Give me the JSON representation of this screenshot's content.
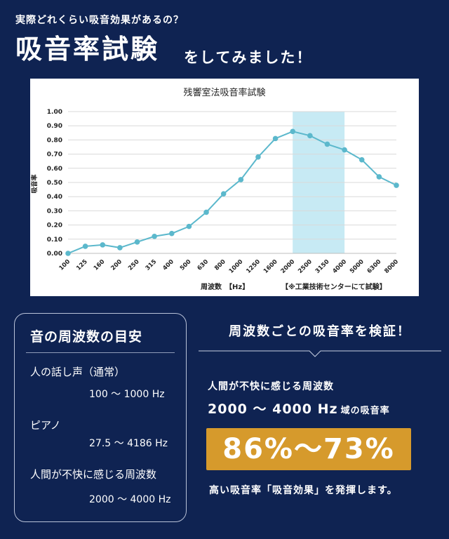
{
  "header": {
    "intro": "実際どれくらい吸音効果があるの？",
    "headline": "吸音率試験",
    "subline": "をしてみました！"
  },
  "colors": {
    "background": "#0f2352",
    "line": "#5bb8cc",
    "highlight": "#c7eaf4",
    "accent": "#d69a2c"
  },
  "chart_data": {
    "type": "line",
    "title": "残響室法吸音率試験",
    "ylabel": "吸音率",
    "xlabel": "周波数　【Hz】",
    "note": "【※工業技術センターにて試験】",
    "categories": [
      "100",
      "125",
      "160",
      "200",
      "250",
      "315",
      "400",
      "500",
      "630",
      "800",
      "1000",
      "1250",
      "1600",
      "2000",
      "2500",
      "3150",
      "4000",
      "5000",
      "6300",
      "8000"
    ],
    "values": [
      0.0,
      0.05,
      0.06,
      0.04,
      0.08,
      0.12,
      0.14,
      0.19,
      0.29,
      0.42,
      0.52,
      0.68,
      0.81,
      0.86,
      0.83,
      0.77,
      0.73,
      0.66,
      0.54,
      0.48
    ],
    "ylim": [
      0,
      1.0
    ],
    "yticks": [
      "0.00",
      "0.10",
      "0.20",
      "0.30",
      "0.40",
      "0.50",
      "0.60",
      "0.70",
      "0.80",
      "0.90",
      "1.00"
    ],
    "highlight_range": [
      "2000",
      "4000"
    ],
    "grid": true
  },
  "guide": {
    "title": "音の周波数の目安",
    "items": [
      {
        "label": "人の話し声（通常）",
        "range": "100 〜 1000 Hz"
      },
      {
        "label": "ピアノ",
        "range": "27.5 〜 4186 Hz"
      },
      {
        "label": "人間が不快に感じる周波数",
        "range": "2000 〜 4000 Hz"
      }
    ]
  },
  "verify": {
    "title": "周波数ごとの吸音率を検証！",
    "line1": "人間が不快に感じる周波数",
    "line2": "2000 〜 4000 Hz",
    "line2_suffix": "域の吸音率",
    "percent": "86%〜73%",
    "conclusion": "高い吸音率「吸音効果」を発揮します。"
  }
}
